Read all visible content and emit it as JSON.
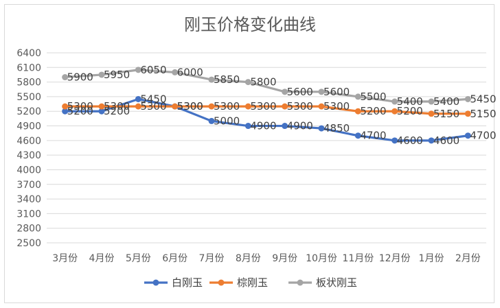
{
  "chart_data": {
    "type": "line",
    "title": "刚玉价格变化曲线",
    "categories": [
      "3月份",
      "4月份",
      "5月份",
      "6月份",
      "7月份",
      "8月份",
      "9月份",
      "10月份",
      "11月份",
      "12月份",
      "1月份",
      "2月份"
    ],
    "series": [
      {
        "name": "白刚玉",
        "color": "#4472c4",
        "values": [
          5200,
          5200,
          5450,
          5300,
          5000,
          4900,
          4900,
          4850,
          4700,
          4600,
          4600,
          4700
        ]
      },
      {
        "name": "棕刚玉",
        "color": "#ed7d31",
        "values": [
          5300,
          5300,
          5300,
          5300,
          5300,
          5300,
          5300,
          5300,
          5200,
          5200,
          5150,
          5150
        ]
      },
      {
        "name": "板状刚玉",
        "color": "#a5a5a5",
        "values": [
          5900,
          5950,
          6050,
          6000,
          5850,
          5800,
          5600,
          5600,
          5500,
          5400,
          5400,
          5450
        ]
      }
    ],
    "data_labels": [
      [
        "5200",
        "5200",
        "5450",
        "5300",
        "5000",
        "4900",
        "4900",
        "4850",
        "4700",
        "4600",
        "4600",
        "4700"
      ],
      [
        "5300",
        "5300",
        "5300",
        "5300",
        "5300",
        "5300",
        "5300",
        "5300",
        "5200",
        "5200",
        "5150",
        "5150"
      ],
      [
        "5900",
        "5950",
        "6050",
        "6000",
        "5850",
        "5800",
        "5600",
        "5600",
        "5500",
        "5400",
        "5400",
        "5450"
      ]
    ],
    "ylim": [
      2500,
      6400
    ],
    "yticks": [
      "2500",
      "2800",
      "3100",
      "3400",
      "3700",
      "4000",
      "4300",
      "4600",
      "4900",
      "5200",
      "5500",
      "5800",
      "6100",
      "6400"
    ],
    "grid": true,
    "legend": "bottom",
    "xlabel": "",
    "ylabel": ""
  }
}
